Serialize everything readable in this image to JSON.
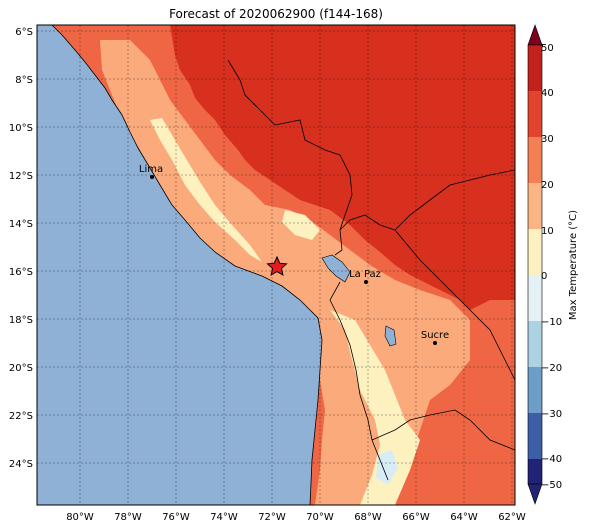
{
  "title": "Forecast of 2020062900 (f144-168)",
  "colorbar": {
    "label": "Max Temperature (°C)",
    "ticks": [
      "50",
      "40",
      "30",
      "20",
      "10",
      "0",
      "−10",
      "−20",
      "−30",
      "−40",
      "−50"
    ],
    "colors": [
      "#ffffff",
      "#c2221c",
      "#e2432e",
      "#f57f55",
      "#fbb585",
      "#fdf0c3",
      "#e4f2f6",
      "#acd2e4",
      "#6c9ec9",
      "#3d5fa7",
      "#212375",
      "#7d0021"
    ]
  },
  "axes": {
    "lat_labels": [
      "6°S",
      "8°S",
      "10°S",
      "12°S",
      "14°S",
      "16°S",
      "18°S",
      "20°S",
      "22°S",
      "24°S"
    ],
    "lon_labels": [
      "80°W",
      "78°W",
      "76°W",
      "74°W",
      "72°W",
      "70°W",
      "68°W",
      "66°W",
      "64°W",
      "62°W"
    ]
  },
  "colors": {
    "ocean": "#8fb1d6",
    "lake": "#8fb1d6",
    "t40": "#d7301f",
    "t30": "#ef6645",
    "t20": "#fbaa7c",
    "t10": "#fdf2bf",
    "t0": "#d8ecf6"
  },
  "cities": [
    {
      "name": "Lima"
    },
    {
      "name": "La Paz"
    },
    {
      "name": "Sucre"
    }
  ],
  "marker": {
    "icon": "red-star-icon"
  }
}
